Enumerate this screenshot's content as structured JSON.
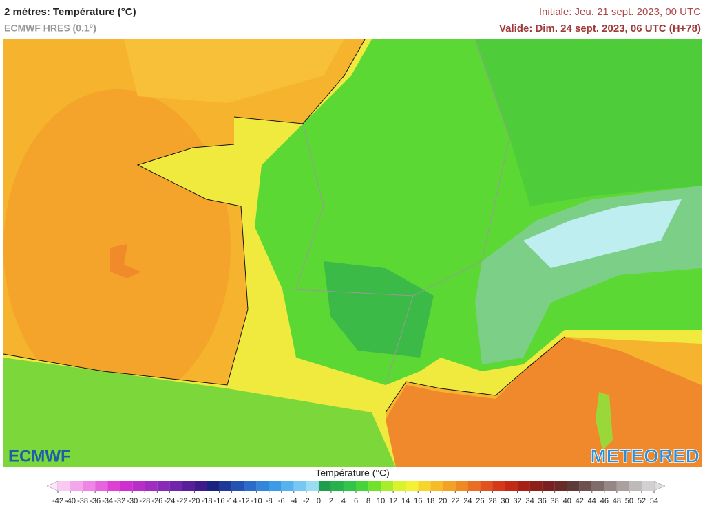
{
  "header": {
    "title": "2 métres: Température (°C)",
    "subtitle": "ECMWF HRES (0.1°)",
    "initial": "Initiale: Jeu. 21 sept. 2023, 00 UTC",
    "valid": "Valide: Dim. 24 sept. 2023, 06 UTC (H+78)"
  },
  "logos": {
    "left": "ECMWF",
    "right": "METEORED"
  },
  "colorbar": {
    "label": "Température (°C)",
    "ticks": [
      -42,
      -40,
      -38,
      -36,
      -34,
      -32,
      -30,
      -28,
      -26,
      -24,
      -22,
      -20,
      -18,
      -16,
      -14,
      -12,
      -10,
      -8,
      -6,
      -4,
      -2,
      0,
      2,
      4,
      6,
      8,
      10,
      12,
      14,
      16,
      18,
      20,
      22,
      24,
      26,
      28,
      30,
      32,
      34,
      36,
      38,
      40,
      42,
      44,
      46,
      48,
      50,
      52,
      54
    ],
    "colors": [
      "#f9c9f4",
      "#f3a6ec",
      "#ef86e6",
      "#e664de",
      "#de40d6",
      "#d02ed0",
      "#b92ec9",
      "#a12cc2",
      "#8a2ab9",
      "#7224ab",
      "#5a1e9b",
      "#3f1a8c",
      "#1a237e",
      "#1e3a99",
      "#2452b3",
      "#2b6bc9",
      "#3384db",
      "#3d9ae6",
      "#55b2ee",
      "#75c8f2",
      "#9adcf4",
      "#1e9e4a",
      "#25b24a",
      "#30c44a",
      "#46d43a",
      "#6ee22c",
      "#a8ec2a",
      "#d8f22c",
      "#f4f032",
      "#f7d62c",
      "#f6bc28",
      "#f3a224",
      "#ef8a22",
      "#ea6e22",
      "#e2521e",
      "#d43a1a",
      "#c22a16",
      "#a82014",
      "#8e1e18",
      "#7a2020",
      "#6a2a28",
      "#5e3a38",
      "#6e5050",
      "#806a6a",
      "#968686",
      "#aaa0a0",
      "#bebaba",
      "#d2d0d0"
    ],
    "under_color": "#fde6fb",
    "over_color": "#dedede"
  }
}
